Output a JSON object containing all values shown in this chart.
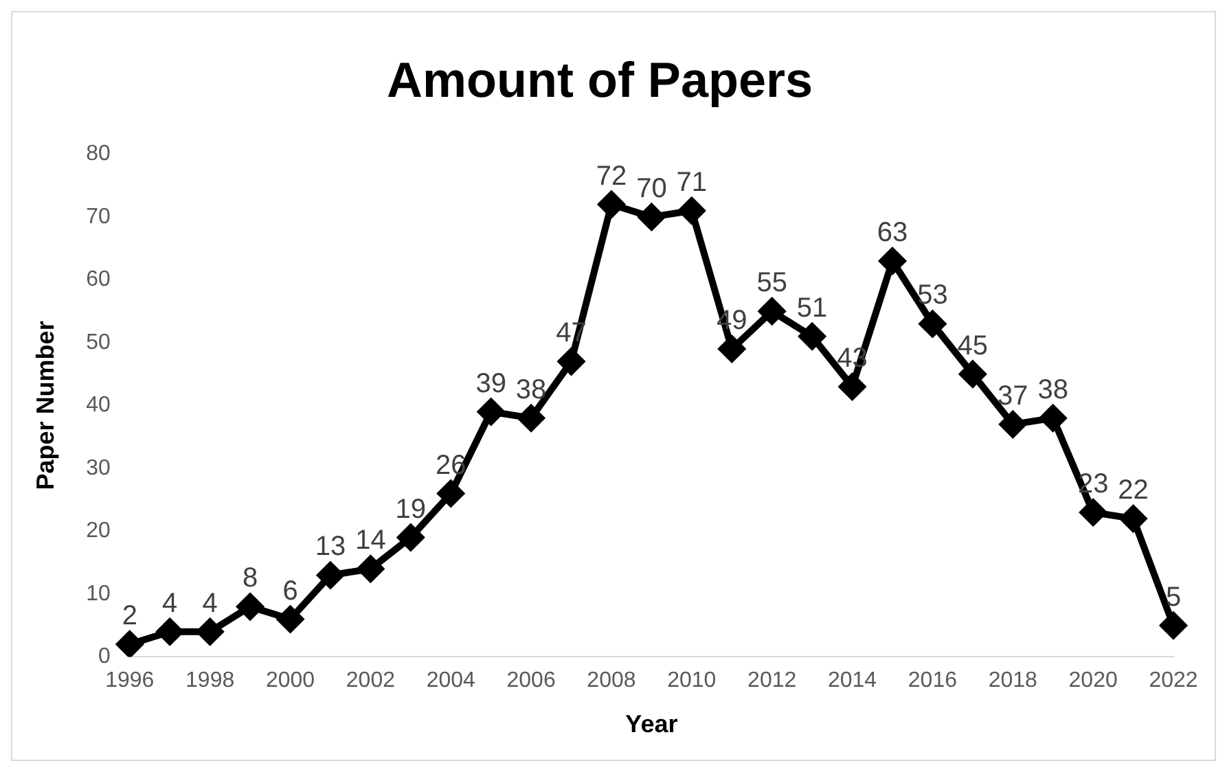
{
  "chart_data": {
    "type": "line",
    "title": "Amount of Papers",
    "xlabel": "Year",
    "ylabel": "Paper Number",
    "categories": [
      "1996",
      null,
      "1998",
      null,
      "2000",
      null,
      "2002",
      null,
      "2004",
      null,
      "2006",
      null,
      "2008",
      null,
      "2010",
      null,
      "2012",
      null,
      "2014",
      null,
      "2016",
      null,
      "2018",
      null,
      "2020",
      null,
      "2022"
    ],
    "series": [
      {
        "color": "#000000",
        "values": [
          2,
          4,
          4,
          8,
          6,
          13,
          14,
          19,
          26,
          39,
          38,
          47,
          72,
          70,
          71,
          49,
          55,
          51,
          43,
          63,
          53,
          45,
          37,
          38,
          23,
          22,
          5
        ]
      }
    ],
    "ylim": [
      0,
      80
    ],
    "yticks": [
      0,
      10,
      20,
      30,
      40,
      50,
      60,
      70,
      80
    ],
    "grid": false,
    "legend": false,
    "marker": "diamond",
    "line_style": "solid",
    "data_labels": true
  }
}
